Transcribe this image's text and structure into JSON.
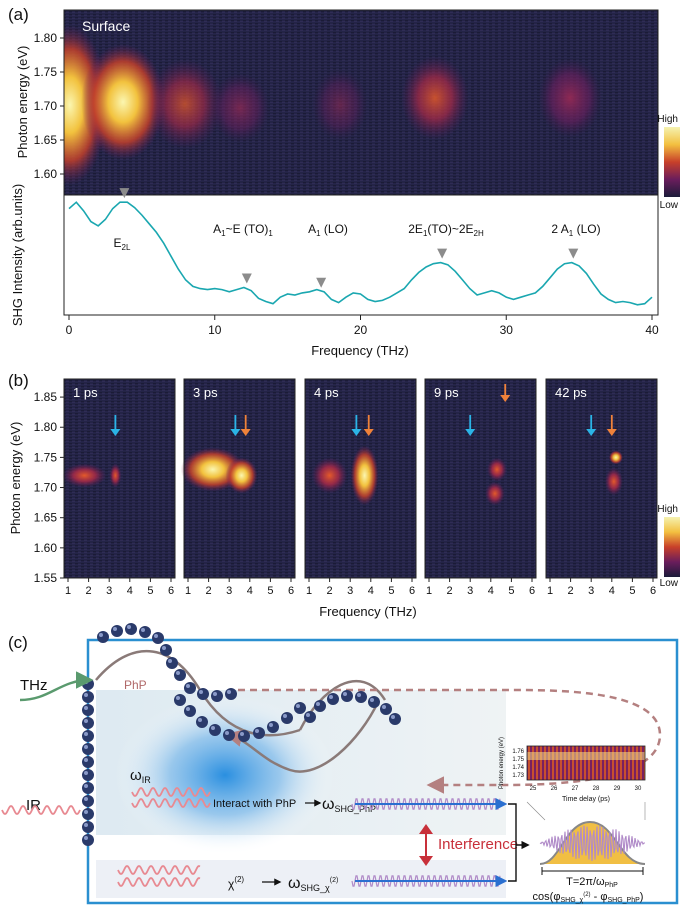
{
  "panel_a": {
    "label": "(a)",
    "surface_label": "Surface",
    "map_ylabel": "Photon energy (eV)",
    "map_yticks": [
      "1.80",
      "1.75",
      "1.70",
      "1.65",
      "1.60"
    ],
    "colorbar": {
      "high": "High",
      "low": "Low"
    },
    "spectrum_ylabel": "SHG Intensity (arb.units)",
    "xlabel": "Frequency (THz)",
    "xticks": [
      "0",
      "10",
      "20",
      "30",
      "40"
    ],
    "line_color": "#1aa7b0",
    "marker_color": "#8c8c8c",
    "peaks": [
      {
        "base": "E",
        "sub": "2L",
        "freq": 3.8
      },
      {
        "base": "A",
        "sub": "1",
        "rest": "~E",
        "sub2": "1",
        "tail": " (TO)",
        "freq": 12.2
      },
      {
        "base": "A",
        "sub": "1",
        "tail": " (LO)",
        "freq": 17.3
      },
      {
        "base": "2E",
        "sub": "1",
        "tail": "(TO)~2E",
        "sub2": "2H",
        "freq": 25.6
      },
      {
        "base": "2 A",
        "sub": "1",
        "tail": " (LO)",
        "freq": 34.6
      }
    ],
    "chart_data": {
      "type": "line",
      "title": "",
      "xlabel": "Frequency (THz)",
      "ylabel": "SHG Intensity (arb.units)",
      "xlim": [
        0,
        40
      ],
      "x": [
        0,
        0.5,
        1.0,
        1.5,
        2.0,
        2.5,
        3.0,
        3.5,
        4.0,
        4.5,
        5.0,
        5.5,
        6.0,
        6.5,
        7.0,
        7.5,
        8.0,
        8.5,
        9.0,
        9.5,
        10.0,
        10.5,
        11.0,
        11.5,
        12.0,
        12.5,
        13.0,
        13.5,
        14.0,
        14.5,
        15.0,
        15.5,
        16.0,
        16.5,
        17.0,
        17.5,
        18.0,
        18.5,
        19.0,
        19.5,
        20.0,
        20.5,
        21.0,
        21.5,
        22.0,
        22.5,
        23.0,
        23.5,
        24.0,
        24.5,
        25.0,
        25.5,
        26.0,
        26.5,
        27.0,
        27.5,
        28.0,
        28.5,
        29.0,
        29.5,
        30.0,
        30.5,
        31.0,
        31.5,
        32.0,
        32.5,
        33.0,
        33.5,
        34.0,
        34.5,
        35.0,
        35.5,
        36.0,
        36.5,
        37.0,
        37.5,
        38.0,
        38.5,
        39.0,
        39.5,
        40.0
      ],
      "y": [
        0.92,
        0.98,
        0.9,
        0.8,
        0.76,
        0.82,
        0.92,
        0.98,
        0.98,
        0.93,
        0.86,
        0.78,
        0.7,
        0.6,
        0.48,
        0.36,
        0.26,
        0.2,
        0.18,
        0.17,
        0.18,
        0.17,
        0.15,
        0.17,
        0.19,
        0.16,
        0.09,
        0.06,
        0.04,
        0.1,
        0.13,
        0.12,
        0.14,
        0.15,
        0.17,
        0.15,
        0.08,
        0.05,
        0.1,
        0.14,
        0.13,
        0.08,
        0.06,
        0.07,
        0.1,
        0.14,
        0.18,
        0.26,
        0.33,
        0.38,
        0.41,
        0.42,
        0.4,
        0.34,
        0.26,
        0.18,
        0.12,
        0.14,
        0.16,
        0.14,
        0.1,
        0.08,
        0.1,
        0.12,
        0.14,
        0.2,
        0.28,
        0.36,
        0.41,
        0.42,
        0.39,
        0.32,
        0.22,
        0.13,
        0.08,
        0.05,
        0.06,
        0.05,
        0.03,
        0.04,
        0.1
      ]
    }
  },
  "panel_b": {
    "label": "(b)",
    "ylabel": "Photon energy (eV)",
    "yticks": [
      "1.85",
      "1.80",
      "1.75",
      "1.70",
      "1.65",
      "1.60",
      "1.55"
    ],
    "xlabel": "Frequency (THz)",
    "xticks": [
      "1",
      "2",
      "3",
      "4",
      "5",
      "6"
    ],
    "colorbar": {
      "high": "High",
      "low": "Low"
    },
    "arrow_colors": {
      "blue": "#2bb4e6",
      "orange": "#f0823a"
    },
    "subpanels": [
      {
        "time": "1 ps",
        "arrows": [
          {
            "color": "blue",
            "freq": 3.3
          }
        ]
      },
      {
        "time": "3 ps",
        "arrows": [
          {
            "color": "blue",
            "freq": 3.3
          },
          {
            "color": "orange",
            "freq": 3.8
          }
        ]
      },
      {
        "time": "4 ps",
        "arrows": [
          {
            "color": "blue",
            "freq": 3.3
          },
          {
            "color": "orange",
            "freq": 3.9
          }
        ]
      },
      {
        "time": "9 ps",
        "arrows": [
          {
            "color": "blue",
            "freq": 3.0
          },
          {
            "color": "orange",
            "freq": 4.7
          }
        ]
      },
      {
        "time": "42 ps",
        "arrows": [
          {
            "color": "blue",
            "freq": 3.0
          },
          {
            "color": "orange",
            "freq": 4.0
          }
        ]
      }
    ]
  },
  "panel_c": {
    "label": "(c)",
    "thz": "THz",
    "ir": "IR",
    "php": "PhP",
    "omega_ir": "ω",
    "omega_ir_sub": "IR",
    "interact": "Interact with PhP",
    "omega_shg_php": "ω",
    "omega_shg_php_sub": "SHG_PhP",
    "chi": "χ",
    "chi_sup": "(2)",
    "omega_shg_chi": "ω",
    "omega_shg_chi_sub": "SHG_χ",
    "omega_shg_chi_sup": "(2)",
    "interference": "Interference",
    "inset_ylabel": "Photon energy (eV)",
    "inset_yticks": [
      "1.76",
      "1.75",
      "1.74",
      "1.73"
    ],
    "inset_xticks": [
      "25",
      "26",
      "27",
      "28",
      "29",
      "30"
    ],
    "inset_xlabel": "Time delay (ps)",
    "period": "T=2π/ω",
    "period_sub": "PhP",
    "cos_formula": "cos(φ",
    "cos_sub1": "SHG_χ",
    "cos_sup1": "(2)",
    "cos_mid": " - φ",
    "cos_sub2": "SHG_PhP",
    "cos_end": ")",
    "box_color": "#2a8fd0",
    "thz_color": "#5a9a6e",
    "ir_color": "#e88a92",
    "php_wave_color": "#c08a8a",
    "interference_color": "#c8303a"
  }
}
